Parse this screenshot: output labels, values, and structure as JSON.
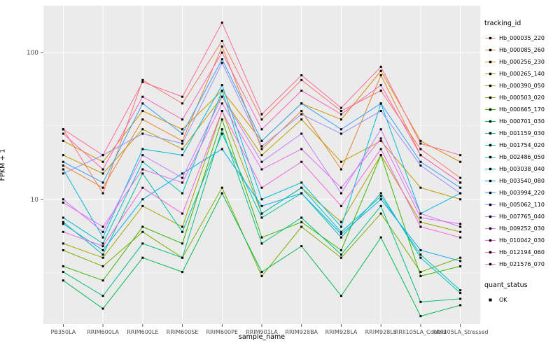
{
  "chart_data": {
    "type": "line",
    "title": "",
    "xlabel": "sample_name",
    "ylabel": "FPKM + 1",
    "y_scale": "log10",
    "y_ticks": [
      10,
      100
    ],
    "y_minor_ticks": [
      3.1623,
      31.623
    ],
    "ylim_log10": [
      0.15,
      2.32
    ],
    "legend_title": "tracking_id",
    "legend_position": "right",
    "panel_bg": "#EBEBEB",
    "grid_color": "#FFFFFF",
    "point_color": "#000000",
    "quant_legend": {
      "title": "quant_status",
      "items": [
        {
          "label": "OK",
          "marker": "square"
        }
      ]
    },
    "categories": [
      "PB350LA",
      "RRIM600LA",
      "RRIM600LE",
      "RRIM600SE",
      "RRIM600PE",
      "RRIM901LA",
      "RRIM928BA",
      "RRIM928LA",
      "RRIM928LE",
      "RRII105LA_Control",
      "RRII105LA_Stressed"
    ],
    "series": [
      {
        "name": "Hb_000035_220",
        "color": "#F8766D",
        "values": [
          30,
          11,
          65,
          45,
          120,
          35,
          65,
          40,
          55,
          22,
          14
        ]
      },
      {
        "name": "Hb_000085_260",
        "color": "#EA8331",
        "values": [
          17,
          12,
          35,
          25,
          110,
          22,
          40,
          16,
          70,
          20,
          13
        ]
      },
      {
        "name": "Hb_000256_230",
        "color": "#D89000",
        "values": [
          25,
          18,
          40,
          30,
          55,
          25,
          45,
          35,
          75,
          25,
          18
        ]
      },
      {
        "name": "Hb_000265_140",
        "color": "#C09B00",
        "values": [
          20,
          15,
          30,
          22,
          50,
          20,
          35,
          18,
          25,
          12,
          10
        ]
      },
      {
        "name": "Hb_000390_050",
        "color": "#A3A500",
        "values": [
          5,
          4,
          9,
          6.5,
          40,
          8,
          12,
          7,
          20,
          7,
          6
        ]
      },
      {
        "name": "Hb_000503_020",
        "color": "#7CAE00",
        "values": [
          4.5,
          3.5,
          6,
          4,
          12,
          3,
          6.5,
          4,
          8,
          3.2,
          4
        ]
      },
      {
        "name": "Hb_000665_170",
        "color": "#39B600",
        "values": [
          3.5,
          2.8,
          6.5,
          5,
          35,
          5.5,
          7,
          4.5,
          20,
          3,
          3.5
        ]
      },
      {
        "name": "Hb_000701_030",
        "color": "#00BB4E",
        "values": [
          2.8,
          1.8,
          4,
          3.2,
          11,
          3.2,
          4.8,
          2.2,
          5.5,
          1.6,
          1.9
        ]
      },
      {
        "name": "Hb_001159_030",
        "color": "#00BF7D",
        "values": [
          3.2,
          2.2,
          5,
          4,
          30,
          5,
          7.5,
          4.2,
          9,
          2,
          2.1
        ]
      },
      {
        "name": "Hb_001754_020",
        "color": "#00C1A3",
        "values": [
          7,
          4.2,
          15,
          6,
          28,
          7.5,
          11,
          5.5,
          11,
          4,
          2.3
        ]
      },
      {
        "name": "Hb_002486_050",
        "color": "#00BFC4",
        "values": [
          7.5,
          5,
          18,
          11,
          55,
          8,
          12,
          6,
          10.5,
          4.2,
          2.4
        ]
      },
      {
        "name": "Hb_003038_040",
        "color": "#00BAE0",
        "values": [
          16,
          5.5,
          22,
          20,
          60,
          10,
          13,
          6.5,
          45,
          8,
          11
        ]
      },
      {
        "name": "Hb_003540_080",
        "color": "#00B0F6",
        "values": [
          6.8,
          4.5,
          10,
          15,
          22,
          9,
          11,
          5.8,
          10,
          4.5,
          3.8
        ]
      },
      {
        "name": "Hb_003994_220",
        "color": "#35A2FF",
        "values": [
          18,
          13,
          45,
          28,
          90,
          25,
          45,
          30,
          45,
          18,
          12
        ]
      },
      {
        "name": "Hb_005062_110",
        "color": "#9590FF",
        "values": [
          15,
          20,
          28,
          24,
          85,
          23,
          38,
          28,
          40,
          17,
          11
        ]
      },
      {
        "name": "Hb_007765_040",
        "color": "#C77CFF",
        "values": [
          10,
          6,
          20,
          14,
          50,
          18,
          28,
          11,
          30,
          8,
          6.5
        ]
      },
      {
        "name": "Hb_009252_030",
        "color": "#E76BF3",
        "values": [
          9.5,
          6.5,
          16,
          13,
          45,
          16,
          22,
          12,
          26,
          7.5,
          6.8
        ]
      },
      {
        "name": "Hb_010042_030",
        "color": "#FA62DB",
        "values": [
          6,
          4.8,
          12,
          8,
          40,
          12,
          18,
          9,
          22,
          6.5,
          5.5
        ]
      },
      {
        "name": "Hb_012194_060",
        "color": "#FF62BC",
        "values": [
          28,
          16,
          50,
          35,
          100,
          30,
          55,
          38,
          60,
          20,
          13
        ]
      },
      {
        "name": "Hb_021576_070",
        "color": "#FF6A98",
        "values": [
          30,
          20,
          63,
          50,
          160,
          38,
          70,
          42,
          80,
          24,
          20
        ]
      }
    ]
  }
}
